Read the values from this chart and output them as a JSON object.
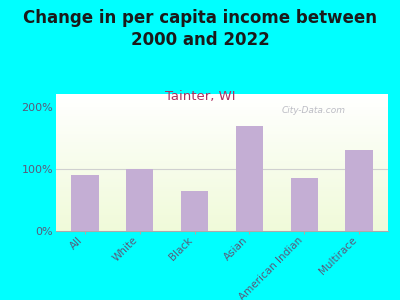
{
  "title": "Change in per capita income between\n2000 and 2022",
  "subtitle": "Tainter, WI",
  "categories": [
    "All",
    "White",
    "Black",
    "Asian",
    "American Indian",
    "Multirace"
  ],
  "values": [
    90,
    100,
    65,
    170,
    85,
    130
  ],
  "bar_color": "#c4aed4",
  "background_outer": "#00ffff",
  "title_color": "#1a1a1a",
  "subtitle_color": "#b03060",
  "tick_label_color": "#5a5a7a",
  "ylim": [
    0,
    220
  ],
  "yticks": [
    0,
    100,
    200
  ],
  "ytick_labels": [
    "0%",
    "100%",
    "200%"
  ],
  "watermark": "City-Data.com",
  "title_fontsize": 12,
  "subtitle_fontsize": 9.5
}
